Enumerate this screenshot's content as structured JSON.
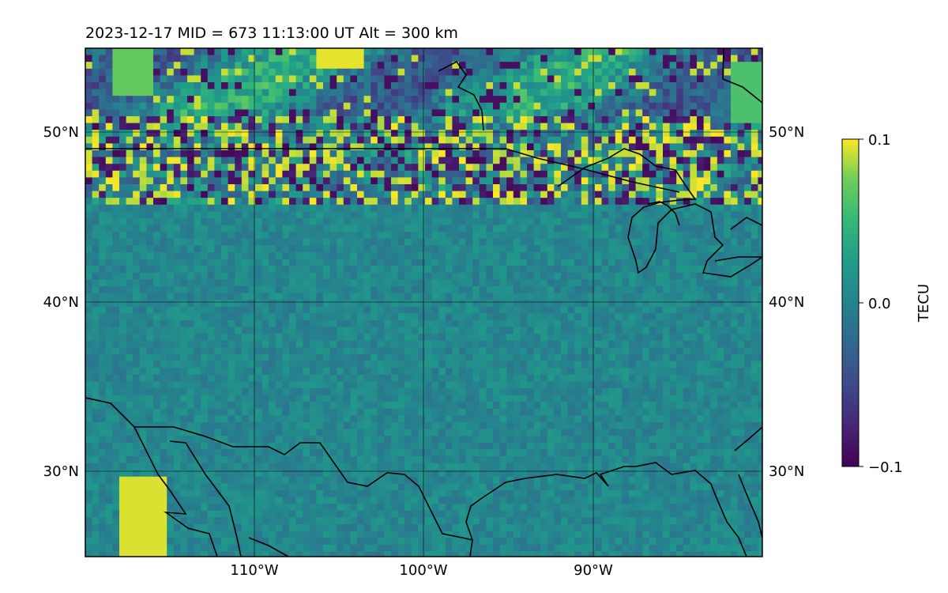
{
  "title": "2023-12-17  MID = 673    11:13:00  UT  Alt = 300 km",
  "map": {
    "lon_range": [
      -120,
      -80
    ],
    "lat_range": [
      25,
      55
    ],
    "lon_gridlines": [
      -110,
      -100,
      -90
    ],
    "lat_gridlines": [
      30,
      40,
      50
    ],
    "lon_labels": [
      "110°W",
      "100°W",
      "90°W"
    ],
    "lat_labels_left": [
      "50°N",
      "40°N",
      "30°N"
    ],
    "lat_labels_right": [
      "50°N",
      "40°N",
      "30°N"
    ],
    "field": "TEC perturbation",
    "colormap": "viridis"
  },
  "colorbar": {
    "label": "TECU",
    "ticks": [
      "0.1",
      "0.0",
      "−0.1"
    ],
    "range": [
      -0.1,
      0.1
    ]
  },
  "colors": {
    "coastline": "#000000",
    "grid": "#000000",
    "viridis_low": "#440154",
    "viridis_mid": "#21918c",
    "viridis_high": "#fde725"
  }
}
